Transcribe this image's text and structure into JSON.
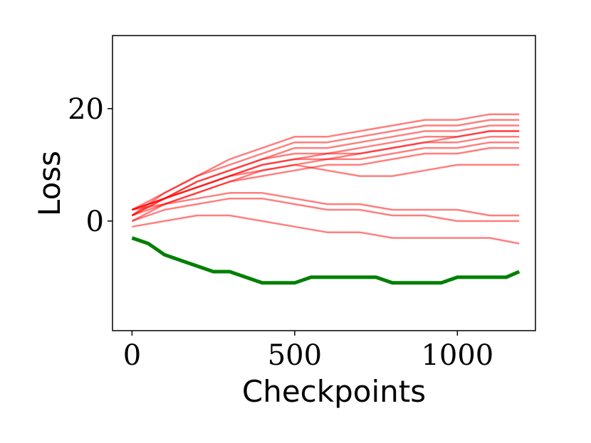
{
  "chart_data": {
    "type": "line",
    "title": "",
    "xlabel": "Checkpoints",
    "ylabel": "Loss",
    "xlim": [
      -60,
      1240
    ],
    "ylim": [
      -19.5,
      33
    ],
    "x_ticks": [
      0,
      500,
      1000
    ],
    "x_tick_labels": [
      "0",
      "500",
      "1000"
    ],
    "y_ticks": [
      0,
      20
    ],
    "y_tick_labels": [
      "0",
      "20"
    ],
    "grid": false,
    "legend": null,
    "colors": {
      "red_series": "#ff0000",
      "green_series": "#008000"
    },
    "series": [
      {
        "color": "#ff0000",
        "alpha": 0.5,
        "x": [
          0,
          100,
          200,
          300,
          400,
          500,
          600,
          700,
          800,
          900,
          1000,
          1100,
          1190
        ],
        "y": [
          2,
          4,
          6,
          8,
          10,
          11,
          11,
          12,
          13,
          14,
          14,
          15,
          15
        ]
      },
      {
        "color": "#ff0000",
        "alpha": 0.5,
        "x": [
          0,
          100,
          200,
          300,
          400,
          500,
          600,
          700,
          800,
          900,
          1000,
          1100,
          1190
        ],
        "y": [
          1,
          4,
          7,
          9,
          11,
          13,
          13,
          14,
          15,
          16,
          16,
          17,
          17
        ]
      },
      {
        "color": "#ff0000",
        "alpha": 0.5,
        "x": [
          0,
          100,
          200,
          300,
          400,
          500,
          600,
          700,
          800,
          900,
          1000,
          1100,
          1190
        ],
        "y": [
          2,
          3,
          5,
          7,
          9,
          10,
          11,
          11,
          12,
          13,
          13,
          14,
          14
        ]
      },
      {
        "color": "#ff0000",
        "alpha": 0.5,
        "x": [
          0,
          100,
          200,
          300,
          400,
          500,
          600,
          700,
          800,
          900,
          1000,
          1100,
          1190
        ],
        "y": [
          1,
          5,
          8,
          10,
          12,
          14,
          14,
          15,
          16,
          17,
          17,
          18,
          18
        ]
      },
      {
        "color": "#ff0000",
        "alpha": 0.5,
        "x": [
          0,
          100,
          200,
          300,
          400,
          500,
          600,
          700,
          800,
          900,
          1000,
          1100,
          1190
        ],
        "y": [
          0,
          3,
          5,
          7,
          8,
          9,
          10,
          10,
          11,
          12,
          12,
          13,
          13
        ]
      },
      {
        "color": "#ff0000",
        "alpha": 0.5,
        "x": [
          0,
          100,
          200,
          300,
          400,
          500,
          600,
          700,
          800,
          900,
          1000,
          1100,
          1190
        ],
        "y": [
          2,
          4,
          7,
          9,
          11,
          12,
          12,
          13,
          14,
          15,
          15,
          16,
          16
        ]
      },
      {
        "color": "#ff0000",
        "alpha": 0.5,
        "x": [
          0,
          100,
          200,
          300,
          400,
          500,
          600,
          700,
          800,
          900,
          1000,
          1100,
          1190
        ],
        "y": [
          1,
          3,
          4,
          5,
          5,
          4,
          3,
          3,
          2,
          2,
          2,
          1,
          1
        ]
      },
      {
        "color": "#ff0000",
        "alpha": 0.5,
        "x": [
          0,
          100,
          200,
          300,
          400,
          500,
          600,
          700,
          800,
          900,
          1000,
          1100,
          1190
        ],
        "y": [
          0,
          2,
          3,
          4,
          4,
          3,
          2,
          2,
          1,
          1,
          0,
          0,
          0
        ]
      },
      {
        "color": "#ff0000",
        "alpha": 0.5,
        "x": [
          0,
          100,
          200,
          300,
          400,
          500,
          600,
          700,
          800,
          900,
          1000,
          1100,
          1190
        ],
        "y": [
          -1,
          0,
          1,
          1,
          0,
          -1,
          -2,
          -2,
          -3,
          -3,
          -3,
          -3,
          -4
        ]
      },
      {
        "color": "#ff0000",
        "alpha": 0.5,
        "x": [
          0,
          100,
          200,
          300,
          400,
          500,
          600,
          700,
          800,
          900,
          1000,
          1100,
          1190
        ],
        "y": [
          2,
          5,
          8,
          11,
          13,
          15,
          15,
          16,
          17,
          18,
          18,
          19,
          19
        ]
      },
      {
        "color": "#ff0000",
        "alpha": 0.5,
        "x": [
          0,
          100,
          200,
          300,
          400,
          500,
          600,
          700,
          800,
          900,
          1000,
          1100,
          1190
        ],
        "y": [
          1,
          4,
          6,
          8,
          9,
          10,
          9,
          8,
          8,
          9,
          10,
          10,
          10
        ]
      },
      {
        "color": "#ff0000",
        "alpha": 0.5,
        "x": [
          0,
          100,
          200,
          300,
          400,
          500,
          600,
          700,
          800,
          900,
          1000,
          1100,
          1190
        ],
        "y": [
          2,
          4,
          6,
          8,
          10,
          11,
          12,
          12,
          13,
          14,
          15,
          16,
          16
        ]
      },
      {
        "color": "#008000",
        "alpha": 1.0,
        "line_width": 5,
        "x": [
          0,
          50,
          100,
          150,
          200,
          250,
          300,
          350,
          400,
          450,
          500,
          550,
          600,
          650,
          700,
          750,
          800,
          850,
          900,
          950,
          1000,
          1050,
          1100,
          1150,
          1190
        ],
        "y": [
          -3,
          -4,
          -6,
          -7,
          -8,
          -9,
          -9,
          -10,
          -11,
          -11,
          -11,
          -10,
          -10,
          -10,
          -10,
          -10,
          -11,
          -11,
          -11,
          -11,
          -10,
          -10,
          -10,
          -10,
          -9
        ]
      }
    ]
  }
}
